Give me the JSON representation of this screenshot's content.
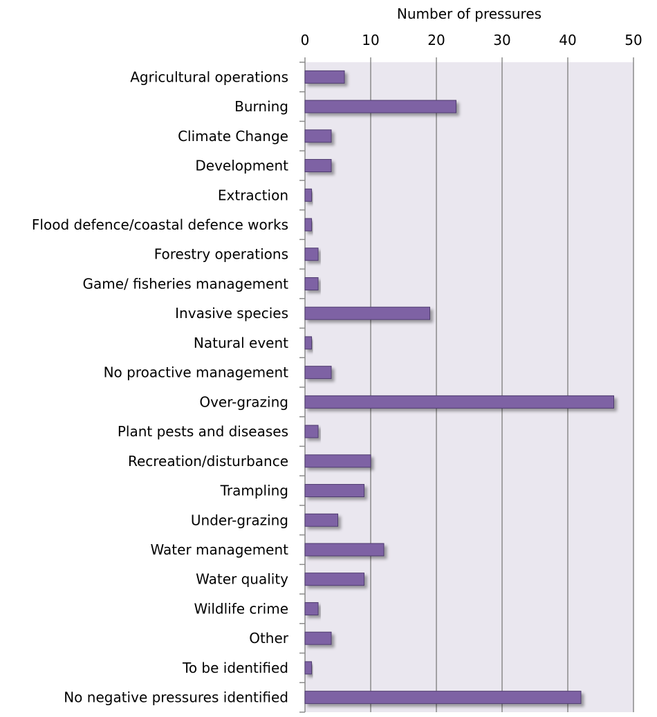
{
  "chart_data": {
    "type": "bar",
    "orientation": "horizontal",
    "xlabel": "Number of pressures",
    "xlabel_position": "top",
    "xlim": [
      0,
      50
    ],
    "xticks": [
      0,
      10,
      20,
      30,
      40,
      50
    ],
    "grid": true,
    "colors": {
      "bar_fill": "#7e62a4",
      "bar_stroke": "#4e3b6e",
      "plot_background": "#eae7ef",
      "gridline": "#8a8a8a"
    },
    "categories": [
      "Agricultural operations",
      "Burning",
      "Climate Change",
      "Development",
      "Extraction",
      "Flood defence/coastal defence works",
      "Forestry operations",
      "Game/ fisheries management",
      "Invasive species",
      "Natural event",
      "No proactive management",
      "Over-grazing",
      "Plant pests and diseases",
      "Recreation/disturbance",
      "Trampling",
      "Under-grazing",
      "Water management",
      "Water quality",
      "Wildlife crime",
      "Other",
      "To be identified",
      "No negative pressures identified"
    ],
    "values": [
      6,
      23,
      4,
      4,
      1,
      1,
      2,
      2,
      19,
      1,
      4,
      47,
      2,
      10,
      9,
      5,
      12,
      9,
      2,
      4,
      1,
      42
    ]
  }
}
